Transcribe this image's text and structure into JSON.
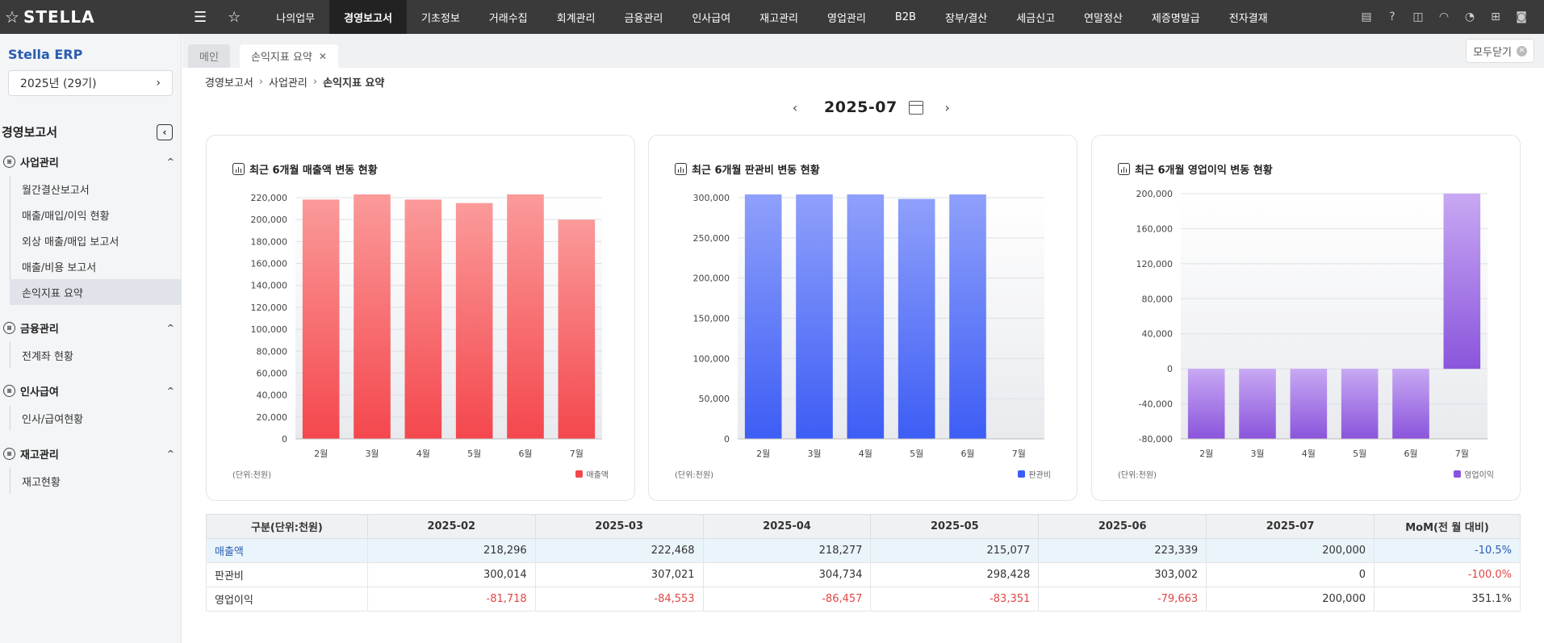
{
  "app": {
    "logo": "STELLA",
    "sidebar_title": "Stella ERP",
    "year_selector": "2025년 (29기)"
  },
  "menu": [
    "나의업무",
    "경영보고서",
    "기초정보",
    "거래수집",
    "회계관리",
    "금융관리",
    "인사급여",
    "재고관리",
    "영업관리",
    "B2B",
    "장부/결산",
    "세금신고",
    "연말정산",
    "제증명발급",
    "전자결재"
  ],
  "menu_active_index": 1,
  "right_icons": [
    "clipboard-icon",
    "help-icon",
    "support-icon",
    "headset-icon",
    "bell-icon",
    "org-chart-icon",
    "user-icon"
  ],
  "sidebar": {
    "section_title": "경영보고서",
    "groups": [
      {
        "label": "사업관리",
        "items": [
          "월간결산보고서",
          "매출/매입/이익 현황",
          "외상 매출/매입 보고서",
          "매출/비용 보고서",
          "손익지표 요약"
        ]
      },
      {
        "label": "금융관리",
        "items": [
          "전계좌 현황"
        ]
      },
      {
        "label": "인사급여",
        "items": [
          "인사/급여현황"
        ]
      },
      {
        "label": "재고관리",
        "items": [
          "재고현황"
        ]
      }
    ],
    "active_item": "손익지표 요약"
  },
  "tabs": {
    "main": "메인",
    "current": "손익지표 요약",
    "close_all": "모두닫기"
  },
  "breadcrumb": [
    "경영보고서",
    "사업관리",
    "손익지표 요약"
  ],
  "period": "2025-07",
  "chart_data": [
    {
      "type": "bar",
      "title": "최근 6개월 매출액 변동 현황",
      "categories": [
        "2월",
        "3월",
        "4월",
        "5월",
        "6월",
        "7월"
      ],
      "series": [
        {
          "name": "매출액",
          "values": [
            218296,
            222468,
            218277,
            215077,
            223339,
            200000
          ]
        }
      ],
      "ylim": [
        0,
        220000
      ],
      "yticks": [
        0,
        20000,
        40000,
        60000,
        80000,
        100000,
        120000,
        140000,
        160000,
        180000,
        200000,
        220000
      ],
      "ytick_labels": [
        "0",
        "20,000",
        "40,000",
        "60,000",
        "80,000",
        "100,000",
        "120,000",
        "140,000",
        "160,000",
        "180,000",
        "200,000",
        "220,000"
      ],
      "unit": "(단위:천원)",
      "color_top": "#fb9a9a",
      "color_bottom": "#f4474d",
      "legend": "bottom-right"
    },
    {
      "type": "bar",
      "title": "최근 6개월 판관비 변동 현황",
      "categories": [
        "2월",
        "3월",
        "4월",
        "5월",
        "6월",
        "7월"
      ],
      "series": [
        {
          "name": "판관비",
          "values": [
            300014,
            307021,
            304734,
            298428,
            303002,
            0
          ]
        }
      ],
      "ylim": [
        0,
        300000
      ],
      "yticks": [
        0,
        50000,
        100000,
        150000,
        200000,
        250000,
        300000
      ],
      "ytick_labels": [
        "0",
        "50,000",
        "100,000",
        "150,000",
        "200,000",
        "250,000",
        "300,000"
      ],
      "unit": "(단위:천원)",
      "color_top": "#8fa0fb",
      "color_bottom": "#3d5df5",
      "legend": "bottom-right"
    },
    {
      "type": "bar",
      "title": "최근 6개월 영업이익 변동 현황",
      "categories": [
        "2월",
        "3월",
        "4월",
        "5월",
        "6월",
        "7월"
      ],
      "series": [
        {
          "name": "영업이익",
          "values": [
            -81718,
            -84553,
            -86457,
            -83351,
            -79663,
            200000
          ]
        }
      ],
      "ylim": [
        -80000,
        200000
      ],
      "yticks": [
        -80000,
        -40000,
        0,
        40000,
        80000,
        120000,
        160000,
        200000
      ],
      "ytick_labels": [
        "-80,000",
        "-40,000",
        "0",
        "40,000",
        "80,000",
        "120,000",
        "160,000",
        "200,000"
      ],
      "unit": "(단위:천원)",
      "color_top": "#c8a8f3",
      "color_bottom": "#8a55dc",
      "legend": "bottom-right"
    }
  ],
  "table": {
    "headers": [
      "구분(단위:천원)",
      "2025-02",
      "2025-03",
      "2025-04",
      "2025-05",
      "2025-06",
      "2025-07",
      "MoM(전 월 대비)"
    ],
    "rows": [
      {
        "label": "매출액",
        "values": [
          "218,296",
          "222,468",
          "218,277",
          "215,077",
          "223,339",
          "200,000"
        ],
        "mom": "-10.5%"
      },
      {
        "label": "판관비",
        "values": [
          "300,014",
          "307,021",
          "304,734",
          "298,428",
          "303,002",
          "0"
        ],
        "mom": "-100.0%"
      },
      {
        "label": "영업이익",
        "values": [
          "-81,718",
          "-84,553",
          "-86,457",
          "-83,351",
          "-79,663",
          "200,000"
        ],
        "mom": "351.1%"
      }
    ]
  },
  "colors": {
    "topbar": "#3a3a3a",
    "accent": "#2a5db0",
    "negative": "#e04646"
  }
}
